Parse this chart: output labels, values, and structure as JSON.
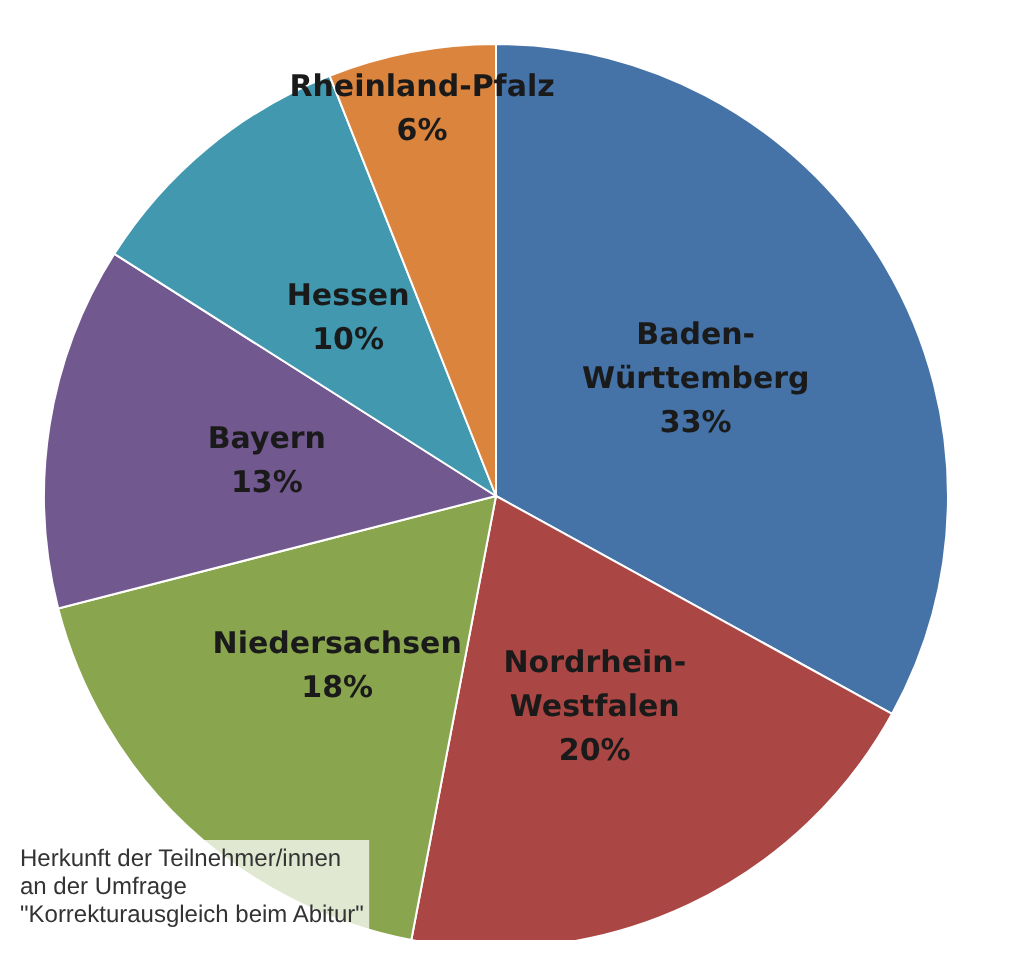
{
  "chart_data": {
    "type": "pie",
    "categories": [
      "Baden-Württemberg",
      "Nordrhein-Westfalen",
      "Niedersachsen",
      "Bayern",
      "Hessen",
      "Rheinland-Pfalz"
    ],
    "values": [
      33,
      20,
      18,
      13,
      10,
      6
    ],
    "colors": [
      "#4572a7",
      "#aa4643",
      "#89a54e",
      "#71588f",
      "#4198af",
      "#db843d"
    ],
    "value_labels": [
      "33%",
      "20%",
      "18%",
      "13%",
      "10%",
      "6%"
    ],
    "legend": false,
    "annotations": [
      "Herkunft der Teilnehmer/innen\nan der Umfrage\n\"Korrekturausgleich beim Abitur\""
    ]
  }
}
